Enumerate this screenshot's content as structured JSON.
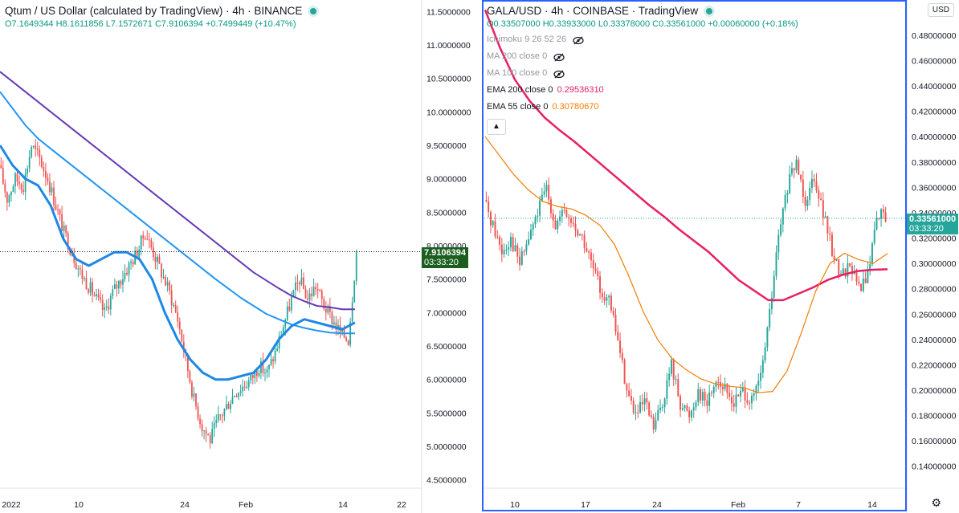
{
  "colors": {
    "up": "#26a69a",
    "down": "#ef5350",
    "accent": "#2962ff",
    "ema200": "#e91e63",
    "ema55": "#f57c00",
    "ma_purple": "#673ab7",
    "ma_blue": "#2196f3",
    "ma_blue_thick": "#1e88e5",
    "ma_cyan": "#26c6da"
  },
  "left": {
    "title": "Qtum / US Dollar (calculated by TradingView) · 4h · BINANCE",
    "ohlc": "O7.1649344 H8.1611856 L7.1572671 C7.9106394 +0.7499449 (+10.47%)",
    "last_price": "7.9106394",
    "countdown": "03:33:20"
  },
  "right": {
    "title": "GALA/USD · 4h · COINBASE · TradingView",
    "ohlc": "O0.33507000 H0.33933000 L0.33378000 C0.33561000 +0.00060000 (+0.18%)",
    "last_price": "0.33561000",
    "countdown": "03:33:20",
    "currency_button": "USD",
    "collapse_icon": "chevron-up-icon",
    "indicators": [
      {
        "label": "Ichimoku 9 26 52 26",
        "value": "",
        "hidden": true,
        "color": "#9598a1"
      },
      {
        "label": "MA 200 close 0",
        "value": "",
        "hidden": true,
        "color": "#9598a1"
      },
      {
        "label": "MA 100 close 0",
        "value": "",
        "hidden": true,
        "color": "#9598a1"
      },
      {
        "label": "EMA 200 close 0",
        "value": "0.29536310",
        "hidden": false,
        "color": "#e91e63"
      },
      {
        "label": "EMA 55 close 0",
        "value": "0.30780670",
        "hidden": false,
        "color": "#f57c00"
      }
    ]
  },
  "chart_data": [
    {
      "type": "candlestick",
      "title": "Qtum / US Dollar (calculated by TradingView) · 4h · BINANCE",
      "ylim": [
        4.4,
        11.6
      ],
      "y_ticks": [
        "11.5000000",
        "11.0000000",
        "10.5000000",
        "10.0000000",
        "9.5000000",
        "9.0000000",
        "8.5000000",
        "8.0000000",
        "7.5000000",
        "7.0000000",
        "6.5000000",
        "6.0000000",
        "5.5000000",
        "5.0000000",
        "4.5000000"
      ],
      "x_ticks": [
        "2022",
        "10",
        "24",
        "Feb",
        "14",
        "22"
      ],
      "price_path": [
        9.2,
        8.7,
        9.0,
        8.9,
        9.5,
        9.3,
        9.0,
        8.6,
        8.2,
        7.9,
        7.6,
        7.4,
        7.2,
        7.0,
        7.3,
        7.5,
        7.7,
        7.9,
        8.2,
        7.9,
        7.6,
        7.3,
        6.9,
        6.3,
        5.7,
        5.3,
        5.1,
        5.4,
        5.6,
        5.8,
        5.9,
        6.0,
        6.2,
        6.1,
        6.4,
        6.8,
        7.2,
        7.5,
        7.2,
        7.4,
        7.1,
        6.9,
        6.7,
        6.6,
        7.9
      ],
      "series": [
        {
          "name": "",
          "color": "#673ab7",
          "values": [
            10.6,
            10.45,
            10.3,
            10.15,
            10.0,
            9.85,
            9.7,
            9.55,
            9.4,
            9.25,
            9.1,
            8.95,
            8.8,
            8.65,
            8.5,
            8.35,
            8.2,
            8.05,
            7.9,
            7.75,
            7.6,
            7.48,
            7.36,
            7.25,
            7.17,
            7.1,
            7.08,
            7.05,
            7.05
          ]
        },
        {
          "name": "",
          "color": "#2196f3",
          "values": [
            10.3,
            10.05,
            9.8,
            9.6,
            9.45,
            9.3,
            9.15,
            9.0,
            8.85,
            8.7,
            8.55,
            8.4,
            8.25,
            8.1,
            7.95,
            7.8,
            7.65,
            7.5,
            7.36,
            7.22,
            7.1,
            6.98,
            6.9,
            6.82,
            6.77,
            6.73,
            6.7,
            6.69,
            6.69
          ]
        },
        {
          "name": "",
          "color": "#1e88e5",
          "values": [
            9.5,
            9.2,
            9.0,
            8.9,
            8.6,
            8.1,
            7.8,
            7.7,
            7.8,
            7.9,
            7.9,
            7.8,
            7.5,
            7.0,
            6.6,
            6.3,
            6.1,
            6.0,
            6.0,
            6.05,
            6.1,
            6.3,
            6.6,
            6.8,
            6.9,
            6.85,
            6.8,
            6.75,
            6.85
          ]
        }
      ]
    },
    {
      "type": "candlestick",
      "title": "GALA/USD · 4h · COINBASE · TradingView",
      "ylim": [
        0.124,
        0.504
      ],
      "y_ticks": [
        "0.48000000",
        "0.46000000",
        "0.44000000",
        "0.42000000",
        "0.40000000",
        "0.38000000",
        "0.36000000",
        "0.34000000",
        "0.32000000",
        "0.30000000",
        "0.28000000",
        "0.26000000",
        "0.24000000",
        "0.22000000",
        "0.20000000",
        "0.18000000",
        "0.16000000",
        "0.14000000"
      ],
      "x_ticks": [
        "10",
        "17",
        "24",
        "Feb",
        "7",
        "14"
      ],
      "price_path": [
        0.35,
        0.33,
        0.31,
        0.32,
        0.3,
        0.32,
        0.34,
        0.36,
        0.33,
        0.34,
        0.33,
        0.32,
        0.3,
        0.28,
        0.27,
        0.24,
        0.2,
        0.18,
        0.19,
        0.17,
        0.19,
        0.22,
        0.19,
        0.18,
        0.2,
        0.19,
        0.21,
        0.2,
        0.19,
        0.2,
        0.19,
        0.21,
        0.26,
        0.32,
        0.36,
        0.38,
        0.35,
        0.37,
        0.34,
        0.31,
        0.29,
        0.3,
        0.28,
        0.29,
        0.34,
        0.336
      ],
      "series": [
        {
          "name": "EMA 200 close 0",
          "color": "#e91e63",
          "values": [
            0.5,
            0.47,
            0.445,
            0.428,
            0.415,
            0.405,
            0.396,
            0.386,
            0.376,
            0.366,
            0.356,
            0.346,
            0.337,
            0.327,
            0.318,
            0.309,
            0.298,
            0.287,
            0.279,
            0.271,
            0.271,
            0.276,
            0.281,
            0.287,
            0.291,
            0.294,
            0.295,
            0.2954
          ]
        },
        {
          "name": "EMA 55 close 0",
          "color": "#f57c00",
          "values": [
            0.4,
            0.385,
            0.37,
            0.358,
            0.349,
            0.345,
            0.343,
            0.338,
            0.33,
            0.315,
            0.29,
            0.262,
            0.24,
            0.225,
            0.216,
            0.209,
            0.205,
            0.203,
            0.202,
            0.198,
            0.199,
            0.215,
            0.245,
            0.278,
            0.3,
            0.308,
            0.303,
            0.3,
            0.3078
          ]
        }
      ]
    }
  ]
}
